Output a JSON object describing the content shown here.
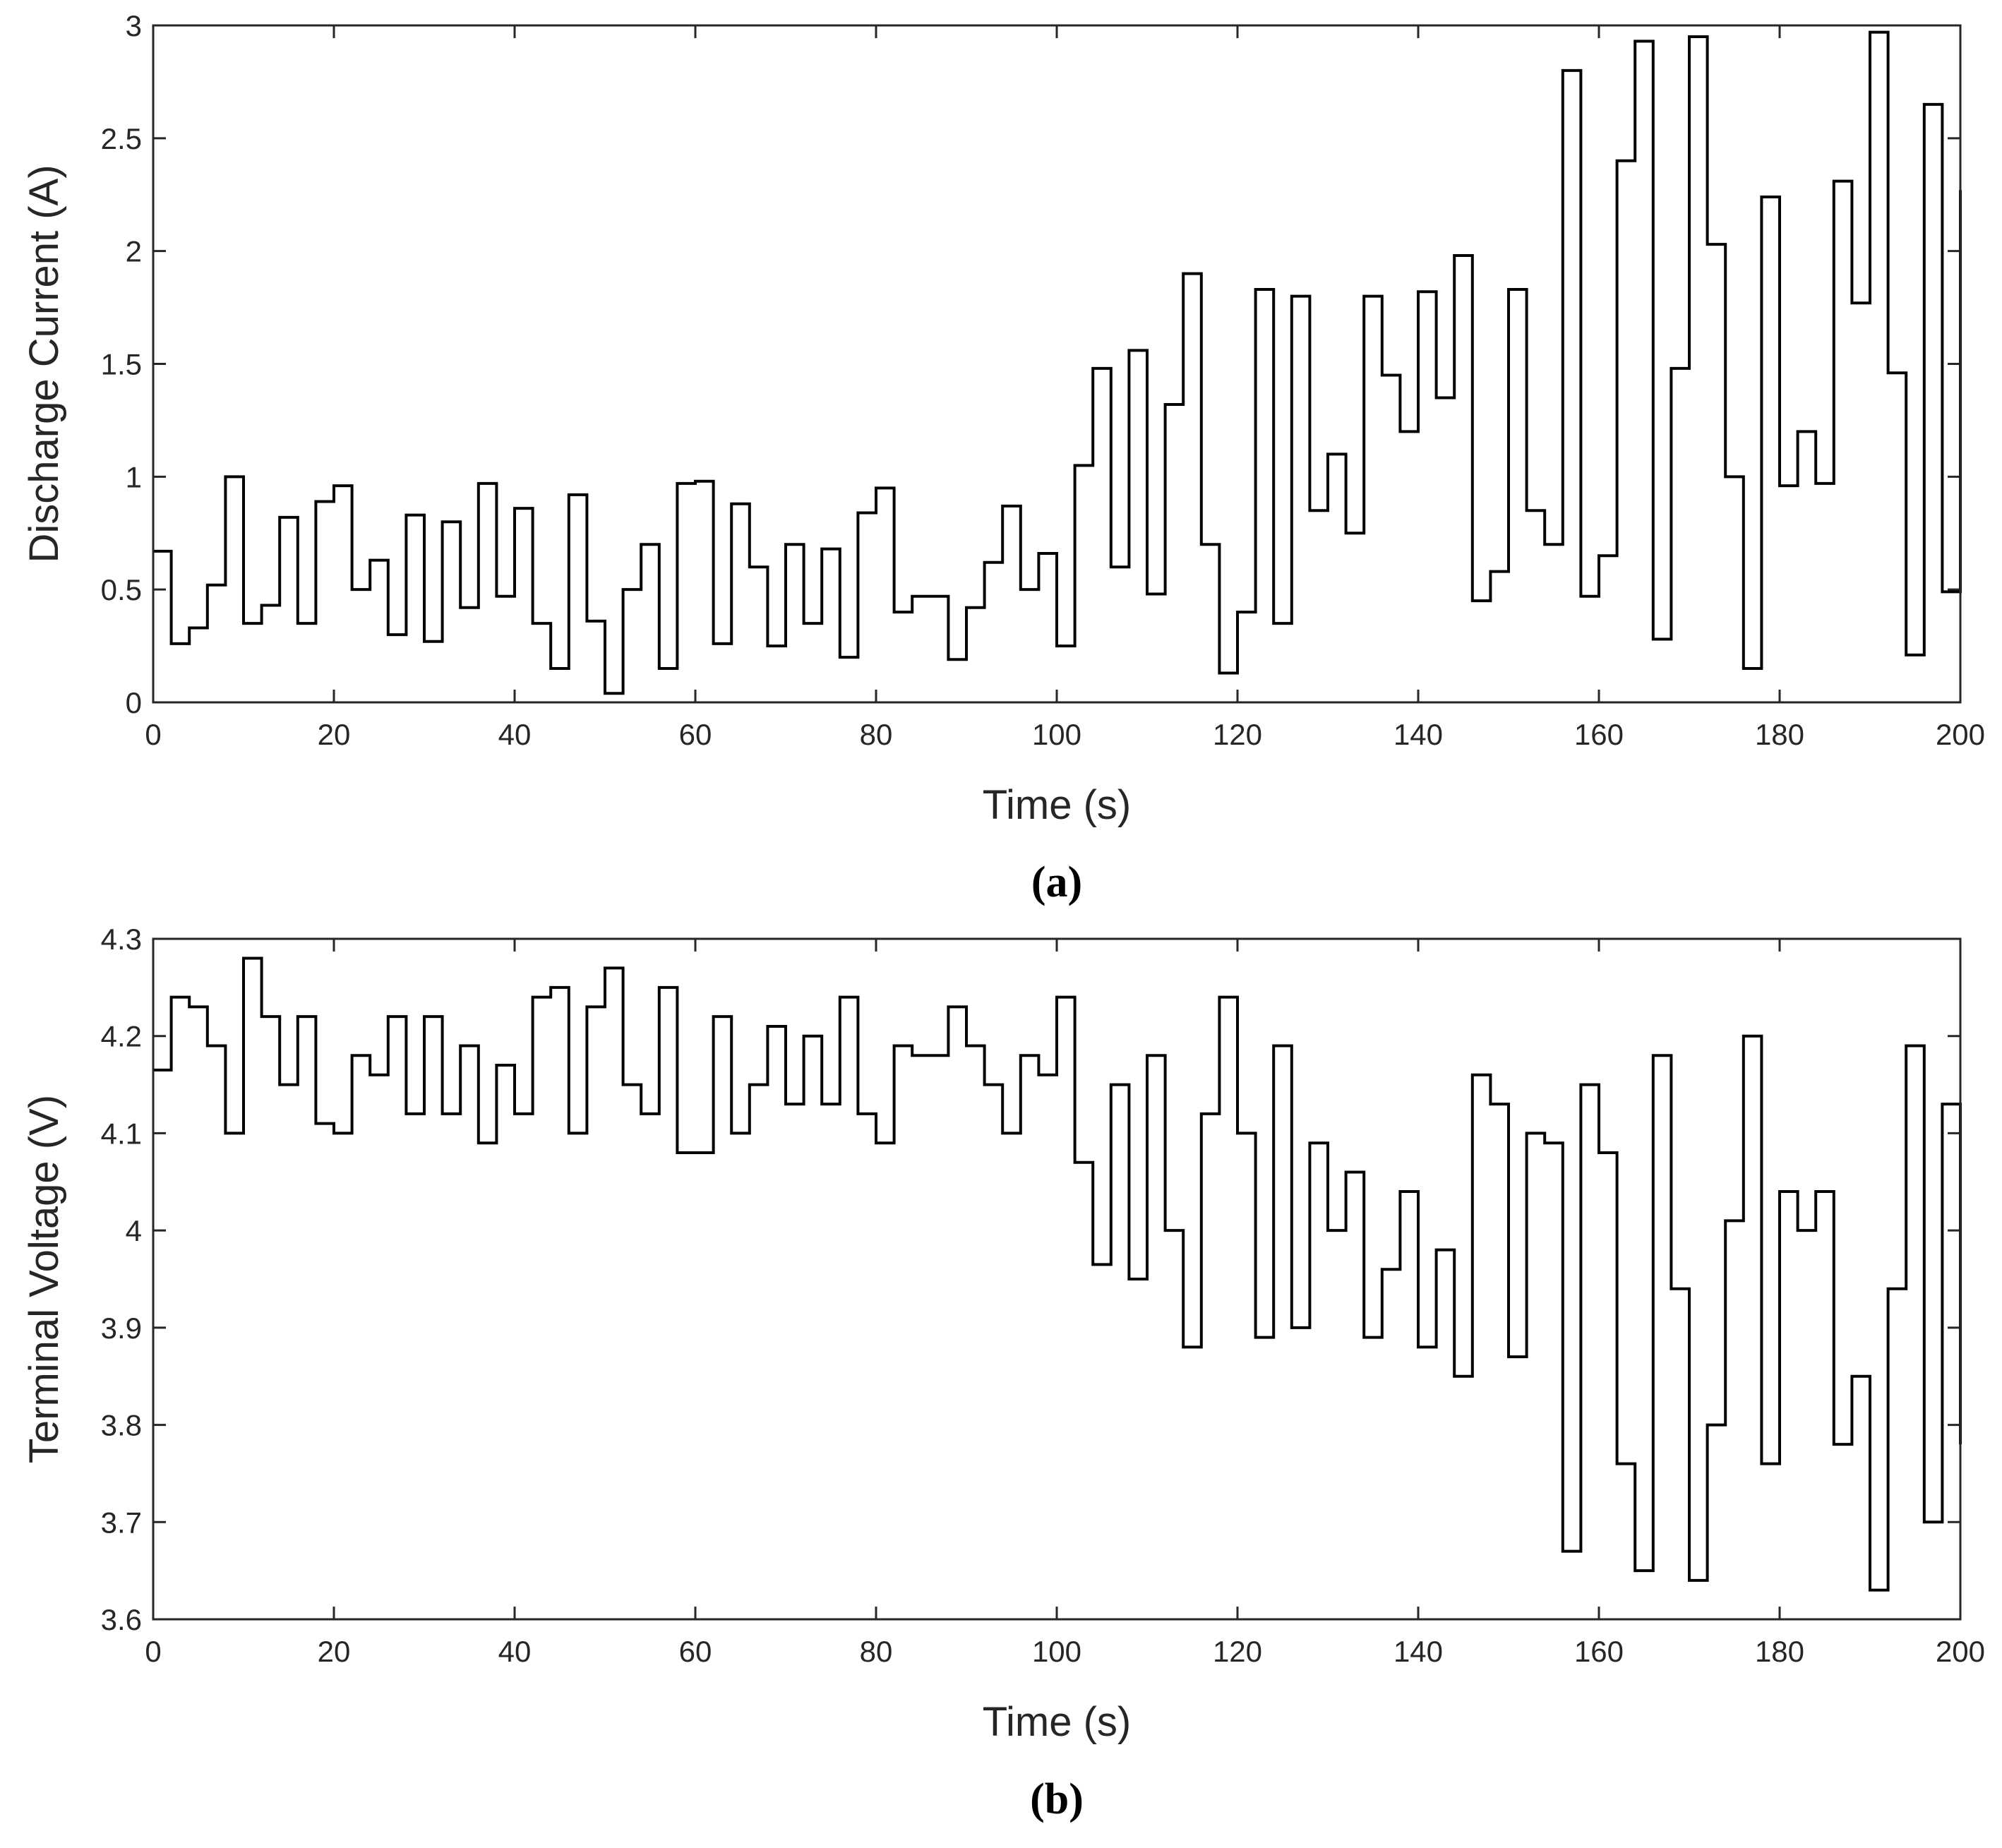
{
  "chart_data": [
    {
      "type": "line",
      "step": true,
      "caption": "(a)",
      "xlabel": "Time (s)",
      "ylabel": "Discharge Current (A)",
      "color": "#000000",
      "x": [
        0,
        2,
        4,
        6,
        8,
        10,
        12,
        14,
        16,
        18,
        20,
        22,
        24,
        26,
        28,
        30,
        32,
        34,
        36,
        38,
        40,
        42,
        44,
        46,
        48,
        50,
        52,
        54,
        56,
        58,
        60,
        62,
        64,
        66,
        68,
        70,
        72,
        74,
        76,
        78,
        80,
        82,
        84,
        86,
        88,
        90,
        92,
        94,
        96,
        98,
        100,
        102,
        104,
        106,
        108,
        110,
        112,
        114,
        116,
        118,
        120,
        122,
        124,
        126,
        128,
        130,
        132,
        134,
        136,
        138,
        140,
        142,
        144,
        146,
        148,
        150,
        152,
        154,
        156,
        158,
        160,
        162,
        164,
        166,
        168,
        170,
        172,
        174,
        176,
        178,
        180,
        182,
        184,
        186,
        188,
        190,
        192,
        194,
        196,
        198,
        200
      ],
      "values": [
        0.67,
        0.26,
        0.33,
        0.52,
        1.0,
        0.35,
        0.43,
        0.82,
        0.35,
        0.89,
        0.96,
        0.5,
        0.63,
        0.3,
        0.83,
        0.27,
        0.8,
        0.42,
        0.97,
        0.47,
        0.86,
        0.35,
        0.15,
        0.92,
        0.36,
        0.04,
        0.5,
        0.7,
        0.15,
        0.97,
        0.98,
        0.26,
        0.88,
        0.6,
        0.25,
        0.7,
        0.35,
        0.68,
        0.2,
        0.84,
        0.95,
        0.4,
        0.47,
        0.47,
        0.19,
        0.42,
        0.62,
        0.87,
        0.5,
        0.66,
        0.25,
        1.05,
        1.48,
        0.6,
        1.56,
        0.48,
        1.32,
        1.9,
        0.7,
        0.13,
        0.4,
        1.83,
        0.35,
        1.8,
        0.85,
        1.1,
        0.75,
        1.8,
        1.45,
        1.2,
        1.82,
        1.35,
        1.98,
        0.45,
        0.58,
        1.83,
        0.85,
        0.7,
        2.8,
        0.47,
        0.65,
        2.4,
        2.93,
        0.28,
        1.48,
        2.95,
        2.03,
        1.0,
        0.15,
        2.24,
        0.96,
        1.2,
        0.97,
        2.31,
        1.77,
        2.97,
        1.46,
        0.21,
        2.65,
        0.49,
        2.27
      ],
      "xlim": [
        0,
        200
      ],
      "xticks": [
        0,
        20,
        40,
        60,
        80,
        100,
        120,
        140,
        160,
        180,
        200
      ],
      "ylim": [
        0,
        3
      ],
      "yticks": [
        0,
        0.5,
        1,
        1.5,
        2,
        2.5,
        3
      ]
    },
    {
      "type": "line",
      "step": true,
      "caption": "(b)",
      "xlabel": "Time (s)",
      "ylabel": "Terminal Voltage (V)",
      "color": "#000000",
      "x": [
        0,
        2,
        4,
        6,
        8,
        10,
        12,
        14,
        16,
        18,
        20,
        22,
        24,
        26,
        28,
        30,
        32,
        34,
        36,
        38,
        40,
        42,
        44,
        46,
        48,
        50,
        52,
        54,
        56,
        58,
        60,
        62,
        64,
        66,
        68,
        70,
        72,
        74,
        76,
        78,
        80,
        82,
        84,
        86,
        88,
        90,
        92,
        94,
        96,
        98,
        100,
        102,
        104,
        106,
        108,
        110,
        112,
        114,
        116,
        118,
        120,
        122,
        124,
        126,
        128,
        130,
        132,
        134,
        136,
        138,
        140,
        142,
        144,
        146,
        148,
        150,
        152,
        154,
        156,
        158,
        160,
        162,
        164,
        166,
        168,
        170,
        172,
        174,
        176,
        178,
        180,
        182,
        184,
        186,
        188,
        190,
        192,
        194,
        196,
        198,
        200
      ],
      "values": [
        4.165,
        4.24,
        4.23,
        4.19,
        4.1,
        4.28,
        4.22,
        4.15,
        4.22,
        4.11,
        4.1,
        4.18,
        4.16,
        4.22,
        4.12,
        4.22,
        4.12,
        4.19,
        4.09,
        4.17,
        4.12,
        4.24,
        4.25,
        4.1,
        4.23,
        4.27,
        4.15,
        4.12,
        4.25,
        4.08,
        4.08,
        4.22,
        4.1,
        4.15,
        4.21,
        4.13,
        4.2,
        4.13,
        4.24,
        4.12,
        4.09,
        4.19,
        4.18,
        4.18,
        4.23,
        4.19,
        4.15,
        4.1,
        4.18,
        4.16,
        4.24,
        4.07,
        3.965,
        4.15,
        3.95,
        4.18,
        4.0,
        3.88,
        4.12,
        4.24,
        4.1,
        3.89,
        4.19,
        3.9,
        4.09,
        4.0,
        4.06,
        3.89,
        3.96,
        4.04,
        3.88,
        3.98,
        3.85,
        4.16,
        4.13,
        3.87,
        4.1,
        4.09,
        3.67,
        4.15,
        4.08,
        3.76,
        3.65,
        4.18,
        3.94,
        3.64,
        3.8,
        4.01,
        4.2,
        3.76,
        4.04,
        4.0,
        4.04,
        3.78,
        3.85,
        3.63,
        3.94,
        4.19,
        3.7,
        4.13,
        3.78
      ],
      "xlim": [
        0,
        200
      ],
      "xticks": [
        0,
        20,
        40,
        60,
        80,
        100,
        120,
        140,
        160,
        180,
        200
      ],
      "ylim": [
        3.6,
        4.3
      ],
      "yticks": [
        3.6,
        3.7,
        3.8,
        3.9,
        4,
        4.1,
        4.2,
        4.3
      ]
    }
  ]
}
